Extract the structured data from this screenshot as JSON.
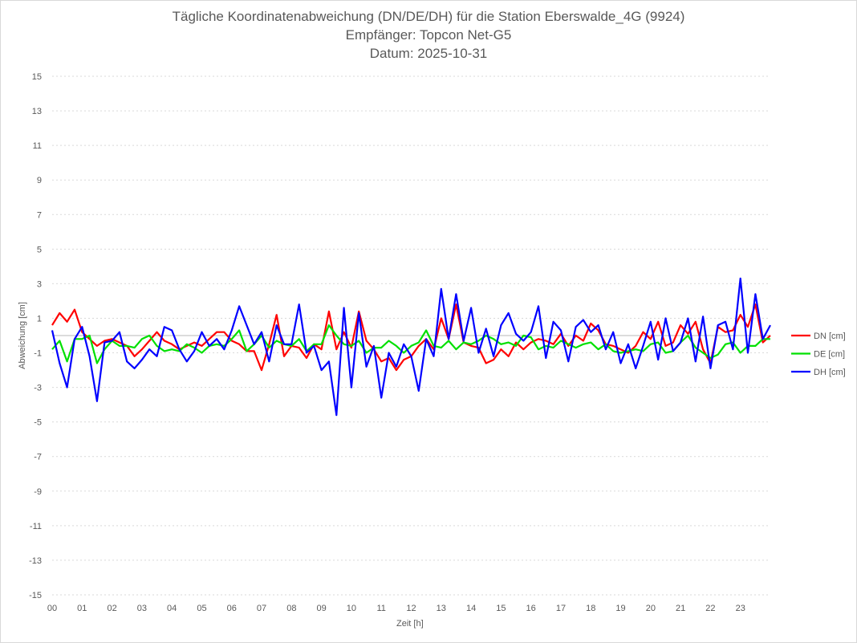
{
  "chart_data": {
    "type": "line",
    "title": [
      "Tägliche Koordinatenabweichung (DN/DE/DH) für die Station Eberswalde_4G (9924)",
      "Empfänger: Topcon Net-G5",
      "Datum: 2025-10-31"
    ],
    "xlabel": "Zeit [h]",
    "ylabel": "Abweichung [cm]",
    "xlim": [
      0,
      24
    ],
    "ylim": [
      -15,
      15
    ],
    "yticks": [
      15,
      13,
      11,
      9,
      7,
      5,
      3,
      1,
      -1,
      -3,
      -5,
      -7,
      -9,
      -11,
      -13,
      -15
    ],
    "xtick_labels": [
      "00",
      "01",
      "02",
      "03",
      "04",
      "05",
      "06",
      "07",
      "08",
      "09",
      "10",
      "11",
      "12",
      "13",
      "14",
      "15",
      "16",
      "17",
      "18",
      "19",
      "20",
      "21",
      "22",
      "23"
    ],
    "x_step_hours": 0.25,
    "legend_position": "right",
    "grid": "horizontal dotted",
    "series": [
      {
        "name": "DN [cm]",
        "color": "#ff0000",
        "values": [
          0.6,
          1.3,
          0.8,
          1.5,
          0.2,
          -0.2,
          -0.6,
          -0.3,
          -0.2,
          -0.4,
          -0.6,
          -1.2,
          -0.8,
          -0.3,
          0.2,
          -0.3,
          -0.5,
          -0.8,
          -0.6,
          -0.4,
          -0.6,
          -0.2,
          0.2,
          0.2,
          -0.3,
          -0.5,
          -0.9,
          -0.9,
          -2.0,
          -0.5,
          1.2,
          -1.2,
          -0.6,
          -0.7,
          -1.3,
          -0.5,
          -0.8,
          1.4,
          -0.8,
          0.2,
          -0.7,
          1.4,
          -0.3,
          -0.8,
          -1.5,
          -1.3,
          -2.0,
          -1.4,
          -1.2,
          -0.6,
          -0.2,
          -0.8,
          1.0,
          -0.2,
          1.8,
          -0.4,
          -0.6,
          -0.7,
          -1.6,
          -1.4,
          -0.8,
          -1.2,
          -0.4,
          -0.8,
          -0.4,
          -0.2,
          -0.3,
          -0.5,
          0.1,
          -0.6,
          0.0,
          -0.3,
          0.7,
          0.3,
          -0.5,
          -0.6,
          -0.8,
          -1.0,
          -0.6,
          0.2,
          -0.2,
          0.8,
          -0.6,
          -0.4,
          0.6,
          0.1,
          0.8,
          -0.8,
          -1.6,
          0.5,
          0.2,
          0.3,
          1.2,
          0.5,
          1.8,
          -0.4,
          0.0
        ]
      },
      {
        "name": "DE [cm]",
        "color": "#00e000",
        "values": [
          -0.8,
          -0.3,
          -1.5,
          -0.2,
          -0.2,
          0.0,
          -1.6,
          -0.8,
          -0.3,
          -0.6,
          -0.6,
          -0.7,
          -0.2,
          0.0,
          -0.6,
          -0.9,
          -0.8,
          -0.9,
          -0.5,
          -0.7,
          -1.0,
          -0.6,
          -0.5,
          -0.6,
          -0.2,
          0.3,
          -0.9,
          -0.5,
          0.0,
          -0.7,
          -0.3,
          -0.5,
          -0.6,
          -0.2,
          -0.9,
          -0.5,
          -0.5,
          0.6,
          0.0,
          -0.5,
          -0.6,
          -0.3,
          -1.0,
          -0.7,
          -0.7,
          -0.3,
          -0.6,
          -1.0,
          -0.6,
          -0.4,
          0.3,
          -0.6,
          -0.7,
          -0.3,
          -0.8,
          -0.4,
          -0.5,
          -0.3,
          0.0,
          -0.2,
          -0.5,
          -0.4,
          -0.6,
          0.0,
          -0.1,
          -0.8,
          -0.6,
          -0.7,
          -0.3,
          -0.5,
          -0.7,
          -0.5,
          -0.4,
          -0.8,
          -0.5,
          -0.9,
          -1.0,
          -0.9,
          -0.8,
          -0.9,
          -0.5,
          -0.4,
          -1.0,
          -0.9,
          -0.4,
          0.0,
          -0.7,
          -1.0,
          -1.3,
          -1.1,
          -0.5,
          -0.4,
          -1.0,
          -0.6,
          -0.6,
          -0.2,
          -0.2
        ]
      },
      {
        "name": "DH [cm]",
        "color": "#0000ff",
        "values": [
          0.3,
          -1.6,
          -3.0,
          -0.2,
          0.5,
          -1.2,
          -3.8,
          -0.4,
          -0.3,
          0.2,
          -1.5,
          -1.9,
          -1.4,
          -0.8,
          -1.2,
          0.5,
          0.3,
          -0.8,
          -1.5,
          -0.9,
          0.2,
          -0.6,
          -0.2,
          -0.8,
          0.3,
          1.7,
          0.6,
          -0.5,
          0.2,
          -1.5,
          0.6,
          -0.5,
          -0.5,
          1.8,
          -1.0,
          -0.6,
          -2.0,
          -1.5,
          -4.6,
          1.6,
          -3.0,
          1.3,
          -1.8,
          -0.6,
          -3.6,
          -1.0,
          -1.8,
          -0.5,
          -1.2,
          -3.2,
          -0.2,
          -1.2,
          2.7,
          -0.2,
          2.4,
          -0.3,
          1.6,
          -1.0,
          0.4,
          -1.2,
          0.6,
          1.3,
          0.1,
          -0.3,
          0.2,
          1.7,
          -1.3,
          0.8,
          0.3,
          -1.5,
          0.5,
          0.9,
          0.2,
          0.6,
          -0.8,
          0.2,
          -1.6,
          -0.5,
          -1.9,
          -0.6,
          0.8,
          -1.4,
          1.0,
          -0.9,
          -0.4,
          1.0,
          -1.5,
          1.1,
          -1.9,
          0.6,
          0.8,
          -0.8,
          3.3,
          -1.0,
          2.4,
          -0.2,
          0.6
        ]
      }
    ]
  }
}
